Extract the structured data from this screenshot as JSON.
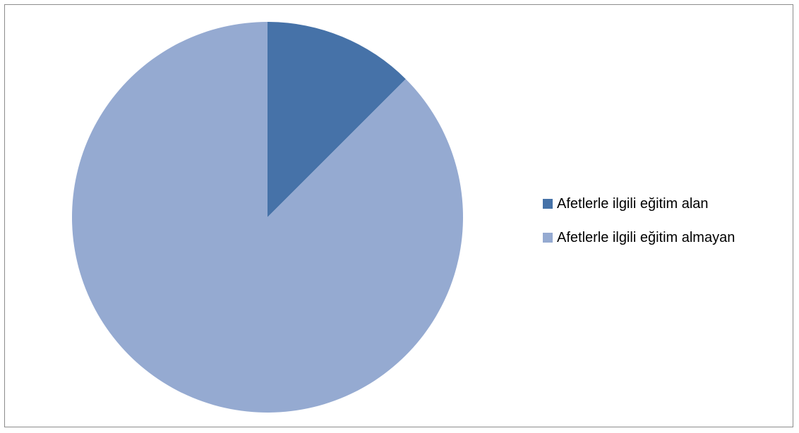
{
  "chart_data": {
    "type": "pie",
    "categories": [
      "Afetlerle ilgili eğitim alan",
      "Afetlerle ilgili eğitim almayan"
    ],
    "values": [
      12.5,
      87.5
    ],
    "colors": [
      "#4672a8",
      "#95aad1"
    ],
    "start_angle_deg": 0,
    "direction": "clockwise",
    "legend_position": "right"
  }
}
